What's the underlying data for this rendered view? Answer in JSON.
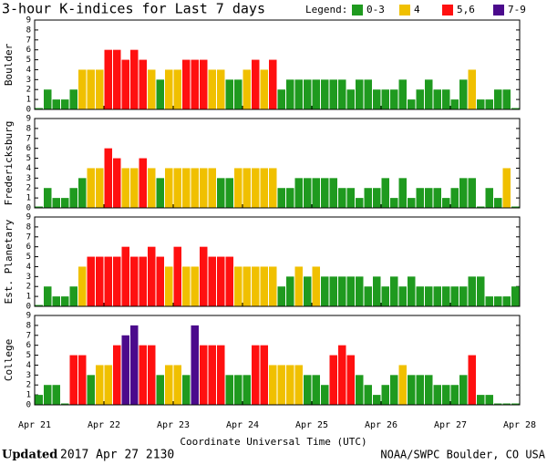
{
  "title": "3-hour K-indices for Last 7 days",
  "legend": {
    "label": "Legend:",
    "items": [
      {
        "name": "0-3",
        "color": "#1f9a1f",
        "min": 0
      },
      {
        "name": "4",
        "color": "#f0c000",
        "min": 4
      },
      {
        "name": "5,6",
        "color": "#ff1010",
        "min": 5
      },
      {
        "name": "7-9",
        "color": "#4b0a8c",
        "min": 7
      }
    ]
  },
  "xlim": [
    0,
    56
  ],
  "xticks": [
    {
      "value": 0,
      "label": "Apr 21"
    },
    {
      "value": 8,
      "label": "Apr 22"
    },
    {
      "value": 16,
      "label": "Apr 23"
    },
    {
      "value": 24,
      "label": "Apr 24"
    },
    {
      "value": 32,
      "label": "Apr 25"
    },
    {
      "value": 40,
      "label": "Apr 26"
    },
    {
      "value": 48,
      "label": "Apr 27"
    },
    {
      "value": 56,
      "label": "Apr 28"
    }
  ],
  "xlabel": "Coordinate Universal Time (UTC)",
  "footer": {
    "updated_label": "Updated",
    "updated": "2017 Apr 27 2130",
    "credit": "NOAA/SWPC Boulder, CO USA"
  },
  "chart_data": [
    {
      "type": "bar",
      "ylabel": "Boulder",
      "ylim": [
        0,
        9
      ],
      "yticks": [
        0,
        1,
        2,
        3,
        4,
        5,
        6,
        7,
        8,
        9
      ],
      "values": [
        0,
        2,
        1,
        1,
        2,
        4,
        4,
        4,
        6,
        6,
        5,
        6,
        5,
        4,
        3,
        4,
        4,
        5,
        5,
        5,
        4,
        4,
        3,
        3,
        4,
        5,
        4,
        5,
        2,
        3,
        3,
        3,
        3,
        3,
        3,
        3,
        2,
        3,
        3,
        2,
        2,
        2,
        3,
        1,
        2,
        3,
        2,
        2,
        1,
        3,
        4,
        1,
        1,
        2,
        2,
        0
      ]
    },
    {
      "type": "bar",
      "ylabel": "Fredericksburg",
      "ylim": [
        0,
        9
      ],
      "yticks": [
        0,
        1,
        2,
        3,
        4,
        5,
        6,
        7,
        8,
        9
      ],
      "values": [
        0,
        2,
        1,
        1,
        2,
        3,
        4,
        4,
        6,
        5,
        4,
        4,
        5,
        4,
        3,
        4,
        4,
        4,
        4,
        4,
        4,
        3,
        3,
        4,
        4,
        4,
        4,
        4,
        2,
        2,
        3,
        3,
        3,
        3,
        3,
        2,
        2,
        1,
        2,
        2,
        3,
        1,
        3,
        1,
        2,
        2,
        2,
        1,
        2,
        3,
        3,
        0,
        2,
        1,
        4,
        0
      ]
    },
    {
      "type": "bar",
      "ylabel": "Est. Planetary",
      "ylim": [
        0,
        9
      ],
      "yticks": [
        0,
        1,
        2,
        3,
        4,
        5,
        6,
        7,
        8,
        9
      ],
      "values": [
        0,
        2,
        1,
        1,
        2,
        4,
        5,
        5,
        5,
        5,
        6,
        5,
        5,
        6,
        5,
        4,
        6,
        4,
        4,
        6,
        5,
        5,
        5,
        4,
        4,
        4,
        4,
        4,
        2,
        3,
        4,
        3,
        4,
        3,
        3,
        3,
        3,
        3,
        2,
        3,
        2,
        3,
        2,
        3,
        2,
        2,
        2,
        2,
        2,
        2,
        3,
        3,
        1,
        1,
        1,
        2
      ]
    },
    {
      "type": "bar",
      "ylabel": "College",
      "ylim": [
        0,
        9
      ],
      "yticks": [
        0,
        1,
        2,
        3,
        4,
        5,
        6,
        7,
        8,
        9
      ],
      "values": [
        1,
        2,
        2,
        0,
        5,
        5,
        3,
        4,
        4,
        6,
        7,
        8,
        6,
        6,
        3,
        4,
        4,
        3,
        8,
        6,
        6,
        6,
        3,
        3,
        3,
        6,
        6,
        4,
        4,
        4,
        4,
        3,
        3,
        2,
        5,
        6,
        5,
        3,
        2,
        1,
        2,
        3,
        4,
        3,
        3,
        3,
        2,
        2,
        2,
        3,
        5,
        1,
        1,
        0,
        0,
        0
      ]
    }
  ]
}
